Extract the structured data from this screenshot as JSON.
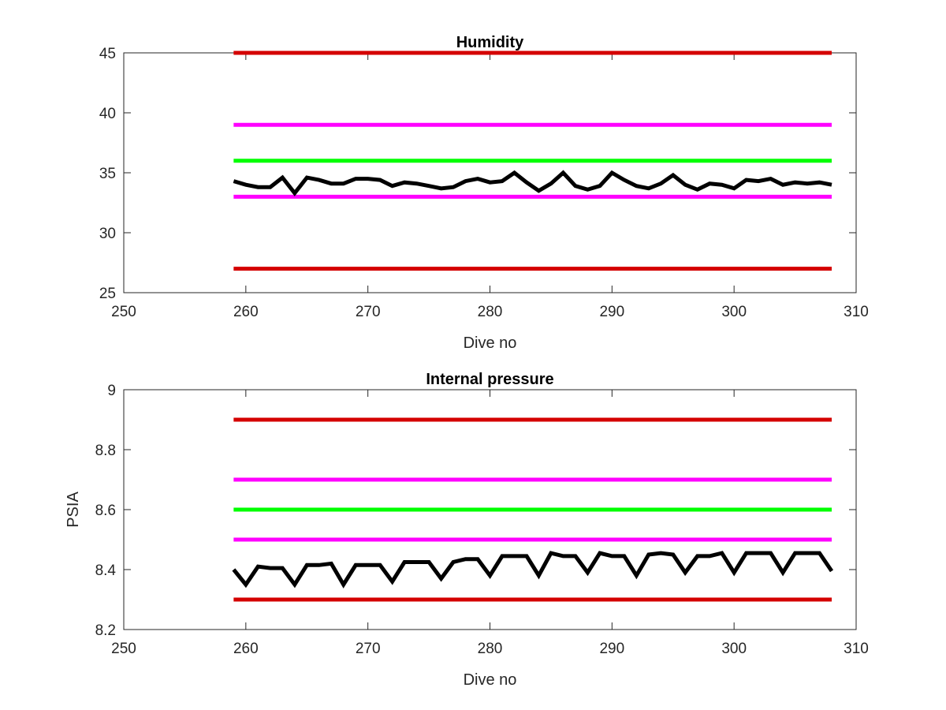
{
  "chart_data": [
    {
      "type": "line",
      "title": "Humidity",
      "xlabel": "Dive no",
      "ylabel": "",
      "xlim": [
        250,
        310
      ],
      "ylim": [
        25,
        45
      ],
      "xticks": [
        250,
        260,
        270,
        280,
        290,
        300,
        310
      ],
      "yticks": [
        25,
        30,
        35,
        40,
        45
      ],
      "grid": false,
      "thresholds": [
        {
          "value": 45,
          "color": "#d40000",
          "x": [
            259,
            308
          ]
        },
        {
          "value": 39,
          "color": "#ff00ff",
          "x": [
            259,
            308
          ]
        },
        {
          "value": 36,
          "color": "#00ff00",
          "x": [
            259,
            308
          ]
        },
        {
          "value": 33,
          "color": "#ff00ff",
          "x": [
            259,
            308
          ]
        },
        {
          "value": 27,
          "color": "#d40000",
          "x": [
            259,
            308
          ]
        }
      ],
      "series": [
        {
          "color": "#000000",
          "x": [
            259,
            260,
            261,
            262,
            263,
            264,
            265,
            266,
            267,
            268,
            269,
            270,
            271,
            272,
            273,
            274,
            275,
            276,
            277,
            278,
            279,
            280,
            281,
            282,
            283,
            284,
            285,
            286,
            287,
            288,
            289,
            290,
            291,
            292,
            293,
            294,
            295,
            296,
            297,
            298,
            299,
            300,
            301,
            302,
            303,
            304,
            305,
            306,
            307,
            308
          ],
          "y": [
            34.3,
            34.0,
            33.8,
            33.8,
            34.6,
            33.3,
            34.6,
            34.4,
            34.1,
            34.1,
            34.5,
            34.5,
            34.4,
            33.9,
            34.2,
            34.1,
            33.9,
            33.7,
            33.8,
            34.3,
            34.5,
            34.2,
            34.3,
            35.0,
            34.2,
            33.5,
            34.1,
            35.0,
            33.9,
            33.6,
            33.9,
            35.0,
            34.4,
            33.9,
            33.7,
            34.1,
            34.8,
            34.0,
            33.6,
            34.1,
            34.0,
            33.7,
            34.4,
            34.3,
            34.5,
            34.0,
            34.2,
            34.1,
            34.2,
            34.0
          ]
        }
      ]
    },
    {
      "type": "line",
      "title": "Internal pressure",
      "xlabel": "Dive no",
      "ylabel": "PSIA",
      "xlim": [
        250,
        310
      ],
      "ylim": [
        8.2,
        9
      ],
      "xticks": [
        250,
        260,
        270,
        280,
        290,
        300,
        310
      ],
      "yticks": [
        8.2,
        8.4,
        8.6,
        8.8,
        9
      ],
      "ytick_labels": [
        "8.2",
        "8.4",
        "8.6",
        "8.8",
        "9"
      ],
      "grid": false,
      "thresholds": [
        {
          "value": 8.9,
          "color": "#d40000",
          "x": [
            259,
            308
          ]
        },
        {
          "value": 8.7,
          "color": "#ff00ff",
          "x": [
            259,
            308
          ]
        },
        {
          "value": 8.6,
          "color": "#00ff00",
          "x": [
            259,
            308
          ]
        },
        {
          "value": 8.5,
          "color": "#ff00ff",
          "x": [
            259,
            308
          ]
        },
        {
          "value": 8.3,
          "color": "#d40000",
          "x": [
            259,
            308
          ]
        }
      ],
      "series": [
        {
          "color": "#000000",
          "x": [
            259,
            260,
            261,
            262,
            263,
            264,
            265,
            266,
            267,
            268,
            269,
            270,
            271,
            272,
            273,
            274,
            275,
            276,
            277,
            278,
            279,
            280,
            281,
            282,
            283,
            284,
            285,
            286,
            287,
            288,
            289,
            290,
            291,
            292,
            293,
            294,
            295,
            296,
            297,
            298,
            299,
            300,
            301,
            302,
            303,
            304,
            305,
            306,
            307,
            308
          ],
          "y": [
            8.4,
            8.35,
            8.41,
            8.405,
            8.405,
            8.35,
            8.415,
            8.415,
            8.42,
            8.35,
            8.415,
            8.415,
            8.415,
            8.36,
            8.425,
            8.425,
            8.425,
            8.37,
            8.425,
            8.435,
            8.435,
            8.38,
            8.445,
            8.445,
            8.445,
            8.38,
            8.455,
            8.445,
            8.445,
            8.39,
            8.455,
            8.445,
            8.445,
            8.38,
            8.45,
            8.455,
            8.45,
            8.39,
            8.445,
            8.445,
            8.455,
            8.39,
            8.455,
            8.455,
            8.455,
            8.39,
            8.455,
            8.455,
            8.455,
            8.395
          ]
        }
      ]
    }
  ]
}
